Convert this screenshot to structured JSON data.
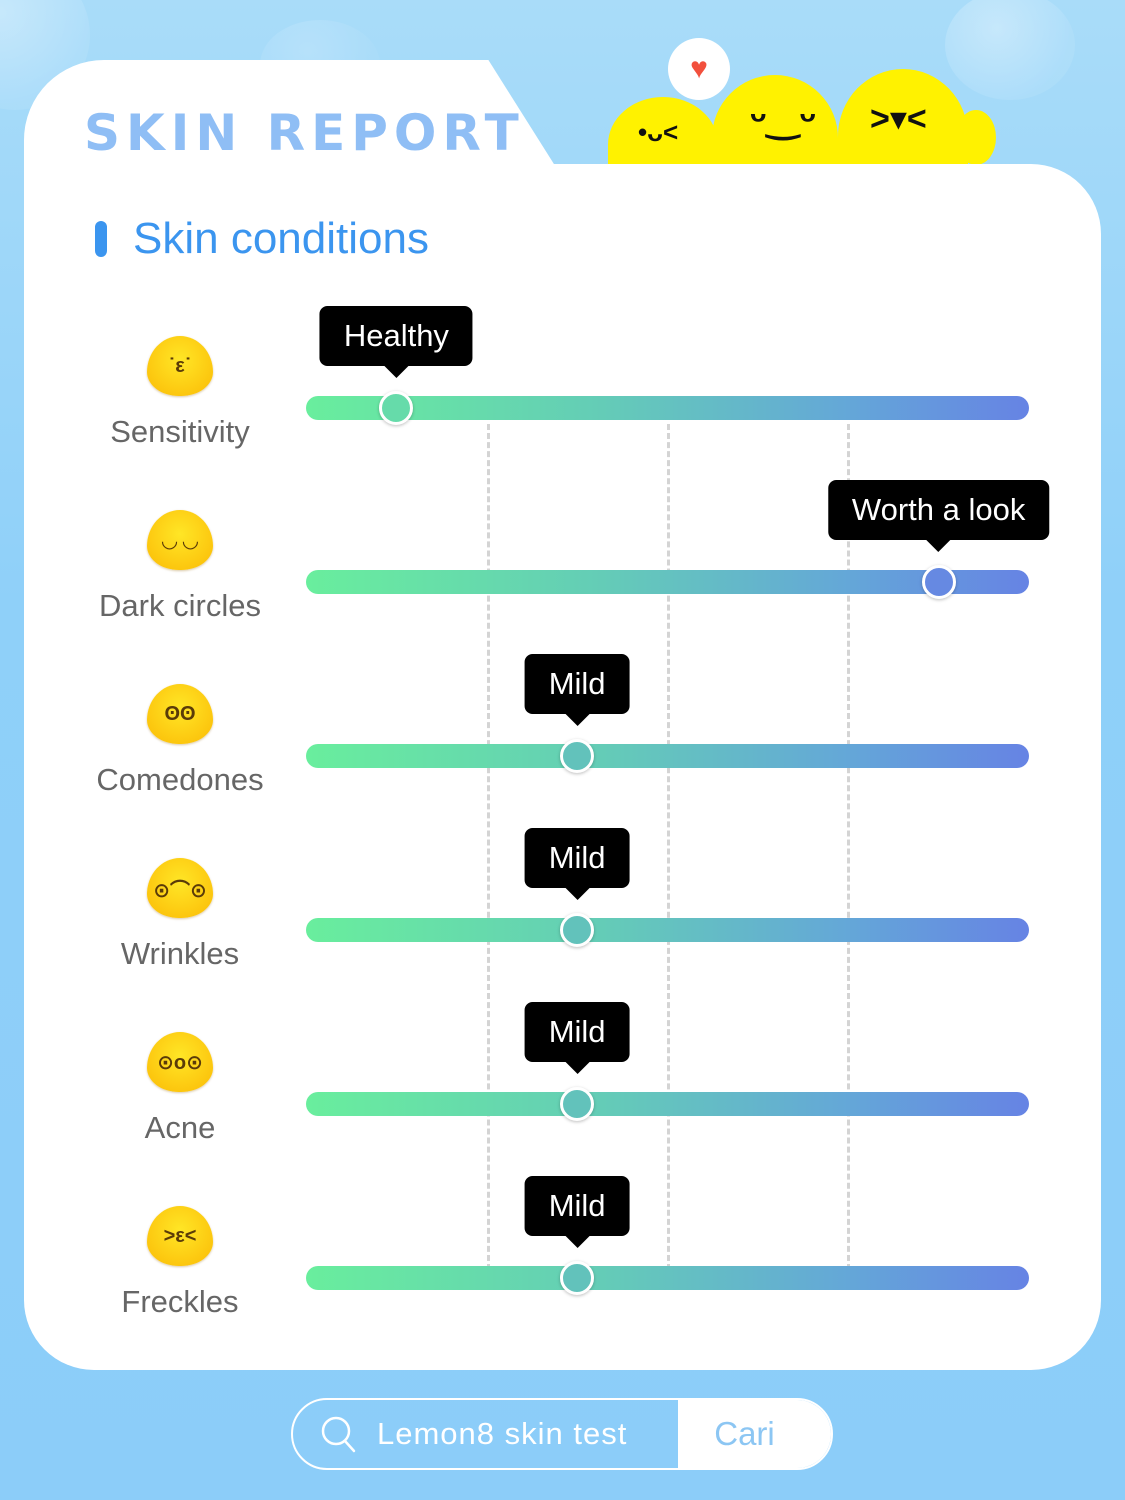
{
  "header": {
    "title": "SKIN REPORT",
    "section_title": "Skin conditions",
    "mascot_bubble_icon": "heart-icon"
  },
  "colors": {
    "accent": "#3b95ef",
    "title": "#8fbef5",
    "track_start": "#69ee9d",
    "track_end": "#6683e4",
    "background": "#8fd0f9"
  },
  "scale": {
    "dividers_at_percent": [
      25,
      50,
      75
    ]
  },
  "conditions": [
    {
      "label": "Sensitivity",
      "level": "Healthy",
      "position_percent": 12.5,
      "icon": "kissing-face-icon",
      "knob_color": "#66dbaa"
    },
    {
      "label": "Dark circles",
      "level": "Worth a look",
      "position_percent": 87.5,
      "icon": "tired-face-icon",
      "knob_color": "#6689e2"
    },
    {
      "label": "Comedones",
      "level": "Mild",
      "position_percent": 37.5,
      "icon": "covering-mouth-face-icon",
      "knob_color": "#62c2bb"
    },
    {
      "label": "Wrinkles",
      "level": "Mild",
      "position_percent": 37.5,
      "icon": "wrinkled-face-icon",
      "knob_color": "#62c2bb"
    },
    {
      "label": "Acne",
      "level": "Mild",
      "position_percent": 37.5,
      "icon": "surprised-face-icon",
      "knob_color": "#62c2bb"
    },
    {
      "label": "Freckles",
      "level": "Mild",
      "position_percent": 37.5,
      "icon": "squinting-face-icon",
      "knob_color": "#62c2bb"
    }
  ],
  "search": {
    "query": "Lemon8 skin test",
    "button_label": "Cari"
  }
}
